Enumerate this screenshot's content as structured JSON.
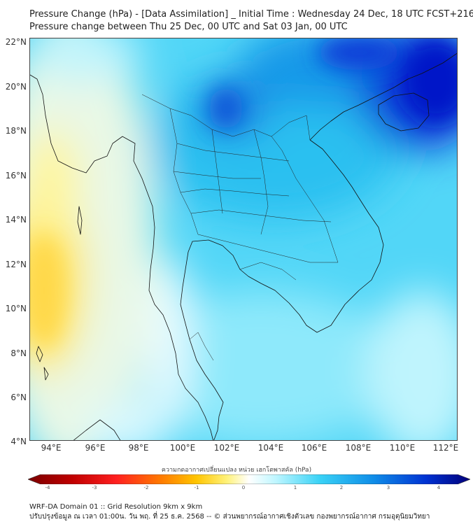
{
  "title": {
    "line1": "Pressure Change (hPa) - [Data Assimilation] _ Initial Time : Wednesday 24 Dec, 18 UTC FCST+216",
    "line2": "Pressure change between Thu 25 Dec, 00 UTC and Sat 03 Jan, 00 UTC"
  },
  "map": {
    "lon_range": [
      93,
      112.5
    ],
    "lat_range": [
      4,
      22
    ],
    "y_ticks": [
      "22°N",
      "20°N",
      "18°N",
      "16°N",
      "14°N",
      "12°N",
      "10°N",
      "8°N",
      "6°N",
      "4°N"
    ],
    "x_ticks": [
      "94°E",
      "96°E",
      "98°E",
      "100°E",
      "102°E",
      "104°E",
      "106°E",
      "108°E",
      "110°E",
      "112°E"
    ]
  },
  "colorbar": {
    "label": "ความกดอากาศเปลี่ยนแปลง หน่วย เฮกโตพาสคัล (hPa)",
    "ticks": [
      "-4",
      "-3",
      "-2",
      "-1",
      "0",
      "1",
      "2",
      "3",
      "4"
    ],
    "range": [
      -4,
      4
    ],
    "colors": [
      "#7a0000",
      "#c00000",
      "#ff2020",
      "#ff7a00",
      "#ffc400",
      "#fff27a",
      "#ffffff",
      "#bff6ff",
      "#39d2f6",
      "#108ee8",
      "#0032d2",
      "#00007a"
    ]
  },
  "footer": {
    "line1": "WRF-DA Domain 01 :: Grid Resolution 9km x 9km",
    "line2": "ปรับปรุงข้อมูล ณ เวลา 01:00น. วัน พฤ. ที่ 25 ธ.ค. 2568 -- © ส่วนพยากรณ์อากาศเชิงตัวเลข กองพยากรณ์อากาศ กรมอุตุนิยมวิทยา"
  }
}
